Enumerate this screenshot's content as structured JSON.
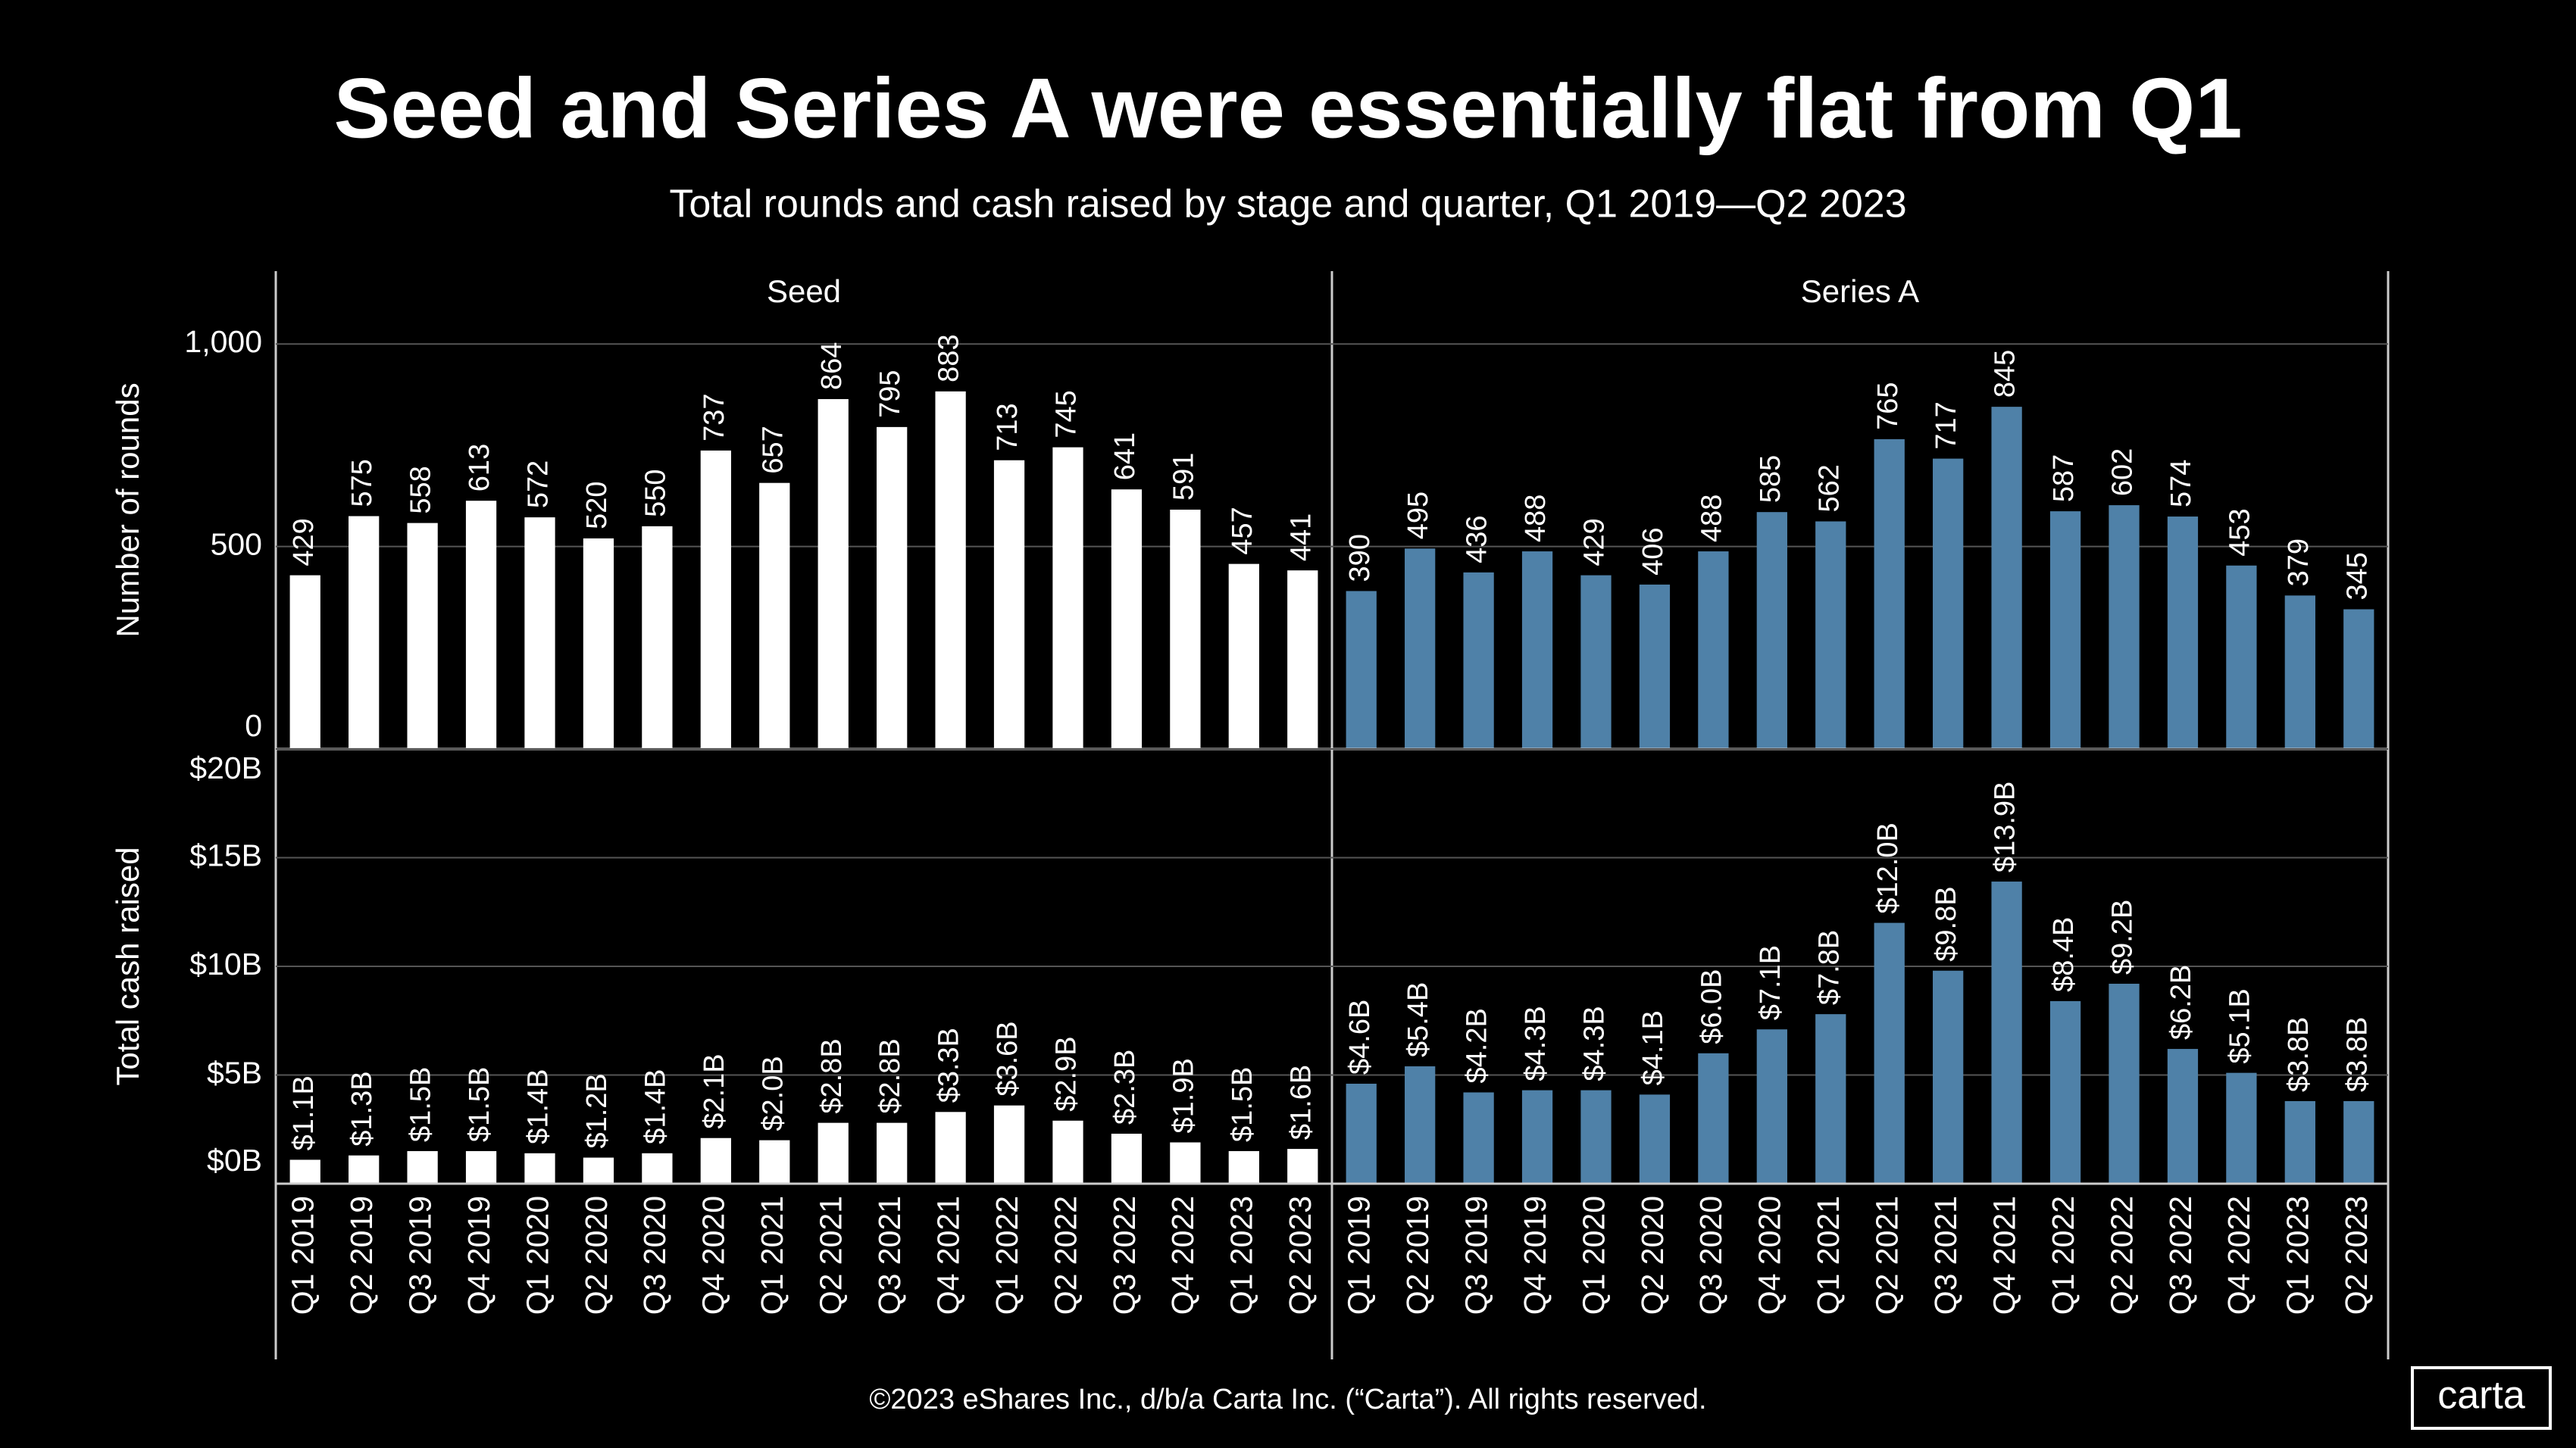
{
  "title": "Seed and Series A were essentially flat from Q1",
  "subtitle": "Total rounds and cash raised by stage and quarter, Q1 2019—Q2 2023",
  "footer": "©2023 eShares Inc., d/b/a Carta Inc. (“Carta”). All rights reserved.",
  "logo": "carta",
  "chart_data": [
    {
      "type": "bar",
      "title": "Seed",
      "y_label": "Number of rounds",
      "color": "#ffffff",
      "values": [
        429,
        575,
        558,
        613,
        572,
        520,
        550,
        737,
        657,
        864,
        795,
        883,
        713,
        745,
        641,
        591,
        457,
        441
      ],
      "ylim": [
        0,
        1180
      ],
      "yticks": [
        0,
        500,
        {
          "value": 1000,
          "label": "1,000"
        }
      ],
      "grid": true
    },
    {
      "type": "bar",
      "title": "Series A",
      "color": "#4f81a8",
      "values": [
        390,
        495,
        436,
        488,
        429,
        406,
        488,
        585,
        562,
        765,
        717,
        845,
        587,
        602,
        574,
        453,
        379,
        345
      ],
      "ylim": [
        0,
        1180
      ]
    },
    {
      "type": "bar",
      "y_label": "Total cash raised",
      "color": "#ffffff",
      "categories": [
        "Q1 2019",
        "Q2 2019",
        "Q3 2019",
        "Q4 2019",
        "Q1 2020",
        "Q2 2020",
        "Q3 2020",
        "Q4 2020",
        "Q1 2021",
        "Q2 2021",
        "Q3 2021",
        "Q4 2021",
        "Q1 2022",
        "Q2 2022",
        "Q3 2022",
        "Q4 2022",
        "Q1 2023",
        "Q2 2023"
      ],
      "values": [
        1.1,
        1.3,
        1.5,
        1.5,
        1.4,
        1.2,
        1.4,
        2.1,
        2.0,
        2.8,
        2.8,
        3.3,
        3.6,
        2.9,
        2.3,
        1.9,
        1.5,
        1.6
      ],
      "value_labels": [
        "$1.1B",
        "$1.3B",
        "$1.5B",
        "$1.5B",
        "$1.4B",
        "$1.2B",
        "$1.4B",
        "$2.1B",
        "$2.0B",
        "$2.8B",
        "$2.8B",
        "$3.3B",
        "$3.6B",
        "$2.9B",
        "$2.3B",
        "$1.9B",
        "$1.5B",
        "$1.6B"
      ],
      "ylim": [
        0,
        20
      ],
      "yticks": [
        {
          "value": 0,
          "label": "$0B"
        },
        {
          "value": 5,
          "label": "$5B"
        },
        {
          "value": 10,
          "label": "$10B"
        },
        {
          "value": 15,
          "label": "$15B"
        },
        {
          "value": 20,
          "label": "$20B"
        }
      ],
      "grid": true
    },
    {
      "type": "bar",
      "color": "#4f81a8",
      "categories": [
        "Q1 2019",
        "Q2 2019",
        "Q3 2019",
        "Q4 2019",
        "Q1 2020",
        "Q2 2020",
        "Q3 2020",
        "Q4 2020",
        "Q1 2021",
        "Q2 2021",
        "Q3 2021",
        "Q4 2021",
        "Q1 2022",
        "Q2 2022",
        "Q3 2022",
        "Q4 2022",
        "Q1 2023",
        "Q2 2023"
      ],
      "values": [
        4.6,
        5.4,
        4.2,
        4.3,
        4.3,
        4.1,
        6.0,
        7.1,
        7.8,
        12.0,
        9.8,
        13.9,
        8.4,
        9.2,
        6.2,
        5.1,
        3.8,
        3.8
      ],
      "value_labels": [
        "$4.6B",
        "$5.4B",
        "$4.2B",
        "$4.3B",
        "$4.3B",
        "$4.1B",
        "$6.0B",
        "$7.1B",
        "$7.8B",
        "$12.0B",
        "$9.8B",
        "$13.9B",
        "$8.4B",
        "$9.2B",
        "$6.2B",
        "$5.1B",
        "$3.8B",
        "$3.8B"
      ],
      "ylim": [
        0,
        20
      ]
    }
  ]
}
